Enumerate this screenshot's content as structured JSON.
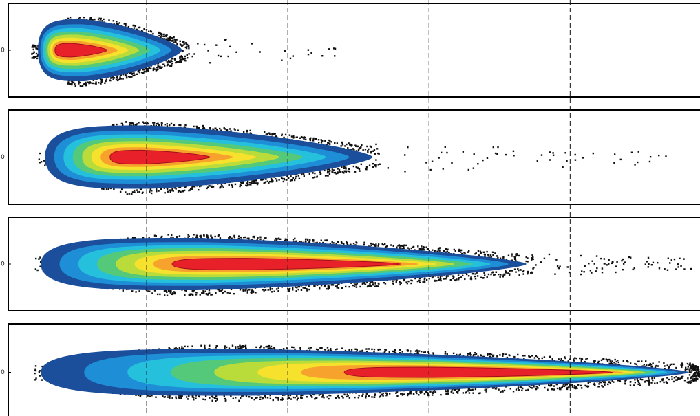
{
  "chart_data": {
    "type": "density-scatter",
    "xlim": [
      0,
      4.92
    ],
    "xticks": [
      1,
      2,
      3,
      4
    ],
    "grid": true,
    "ylim": [
      -1,
      1
    ],
    "panels": [
      {
        "xrange": [
          0.23,
          1.25
        ],
        "core": [
          0.35,
          0.72
        ],
        "tail_max": 2.35,
        "yticks": [
          {
            "value": 0,
            "label": "0"
          }
        ]
      },
      {
        "xrange": [
          0.28,
          2.6
        ],
        "core": [
          0.74,
          1.45
        ],
        "tail_max": 4.69,
        "yticks": [
          {
            "value": 0,
            "label": "0"
          }
        ]
      },
      {
        "xrange": [
          0.25,
          3.69
        ],
        "core": [
          1.18,
          2.8
        ],
        "tail_max": 4.89,
        "yticks": [
          {
            "value": 0,
            "label": "0"
          }
        ]
      },
      {
        "xrange": [
          0.25,
          4.84
        ],
        "core": [
          2.4,
          4.3
        ],
        "tail_max": 4.92,
        "yticks": [
          {
            "value": 0,
            "label": "0"
          }
        ]
      }
    ]
  }
}
